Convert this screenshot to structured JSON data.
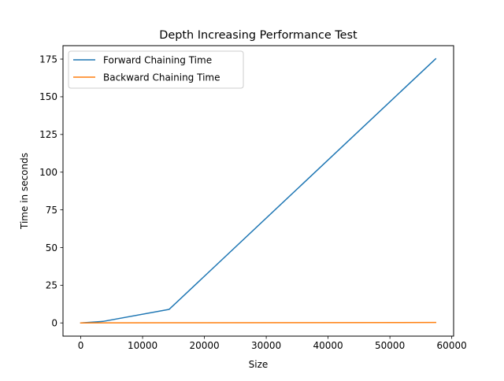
{
  "chart_data": {
    "type": "line",
    "title": "Depth Increasing Performance Test",
    "xlabel": "Size",
    "ylabel": "Time in seconds",
    "xlim": [
      -2870,
      60300
    ],
    "ylim": [
      -8.76,
      183.9
    ],
    "x_ticks": [
      0,
      10000,
      20000,
      30000,
      40000,
      50000,
      60000
    ],
    "x_tick_labels": [
      "0",
      "10000",
      "20000",
      "30000",
      "40000",
      "50000",
      "60000"
    ],
    "y_ticks": [
      0,
      25,
      50,
      75,
      100,
      125,
      150,
      175
    ],
    "y_tick_labels": [
      "0",
      "25",
      "50",
      "75",
      "100",
      "125",
      "150",
      "175"
    ],
    "grid": false,
    "legend_position": "upper-left",
    "series": [
      {
        "name": "Forward Chaining Time",
        "color": "#1f77b4",
        "x": [
          0,
          3600,
          14300,
          57400
        ],
        "y": [
          0.0,
          1.0,
          9.0,
          175.2
        ]
      },
      {
        "name": "Backward Chaining Time",
        "color": "#ff7f0e",
        "x": [
          0,
          3600,
          14300,
          57400
        ],
        "y": [
          0.0,
          0.05,
          0.1,
          0.3
        ]
      }
    ]
  }
}
